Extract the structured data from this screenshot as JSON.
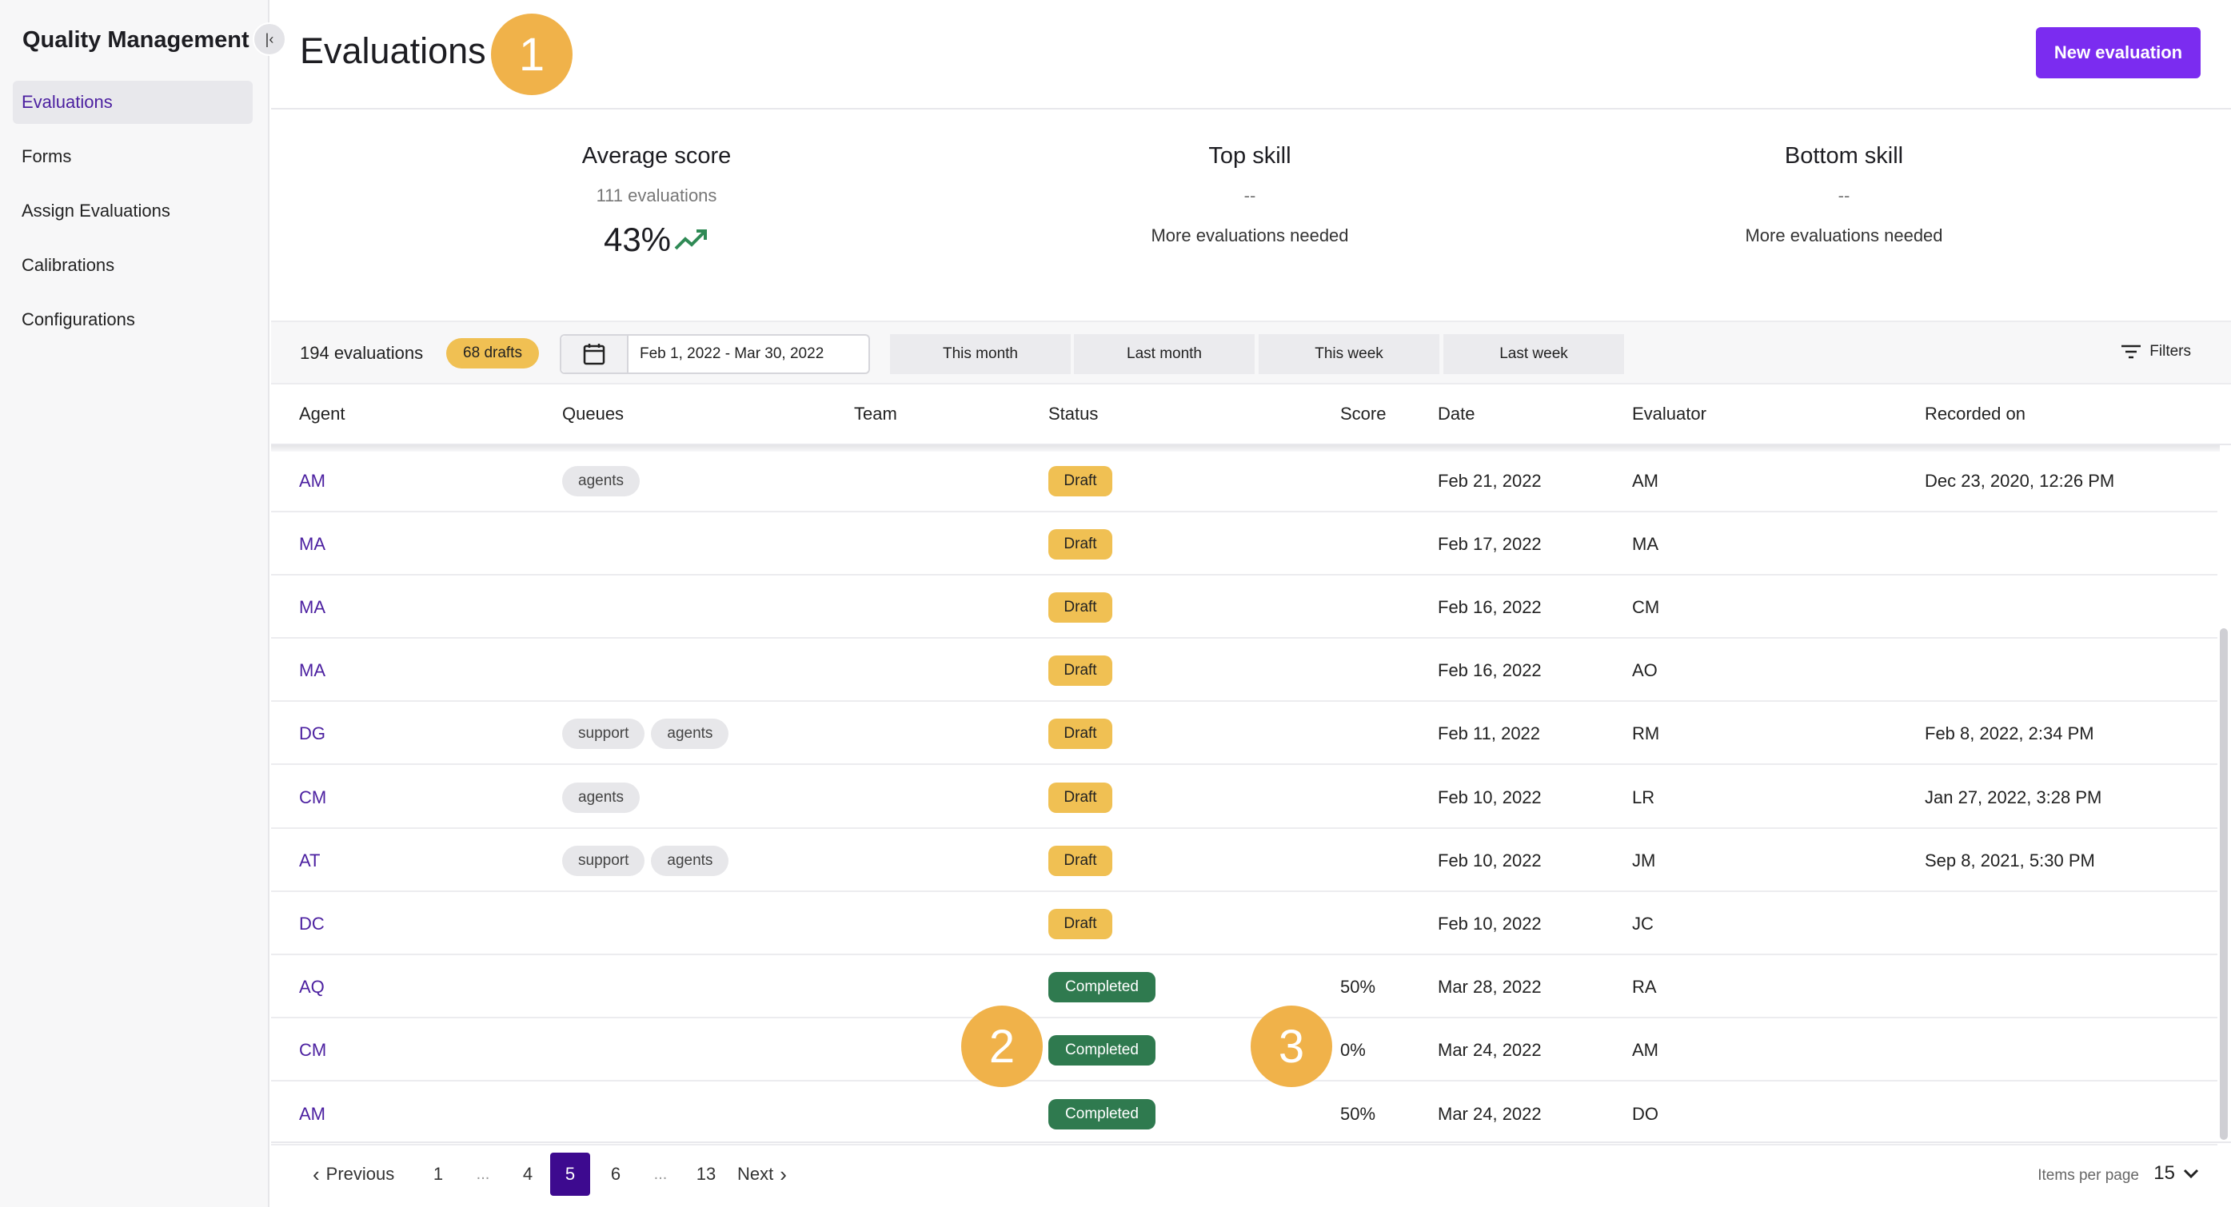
{
  "sidebar": {
    "title": "Quality Management",
    "collapse_icon": "collapse-left-icon",
    "items": [
      {
        "label": "Evaluations",
        "active": true
      },
      {
        "label": "Forms"
      },
      {
        "label": "Assign Evaluations"
      },
      {
        "label": "Calibrations"
      },
      {
        "label": "Configurations"
      }
    ]
  },
  "header": {
    "title": "Evaluations",
    "new_button": "New evaluation"
  },
  "markers": [
    "1",
    "2",
    "3"
  ],
  "stats": {
    "average": {
      "title": "Average score",
      "sub": "111 evaluations",
      "value": "43%",
      "trend_icon": "trending-up-icon"
    },
    "top": {
      "title": "Top skill",
      "sub": "--",
      "note": "More evaluations needed"
    },
    "bottom": {
      "title": "Bottom skill",
      "sub": "--",
      "note": "More evaluations needed"
    }
  },
  "toolbar": {
    "count": "194 evaluations",
    "drafts": "68 drafts",
    "date_range": "Feb 1, 2022 - Mar 30, 2022",
    "quick_ranges": [
      "This month",
      "Last month",
      "This week",
      "Last week"
    ],
    "filters": "Filters"
  },
  "table": {
    "headers": [
      "Agent",
      "Queues",
      "Team",
      "Status",
      "Score",
      "Date",
      "Evaluator",
      "Recorded on"
    ],
    "rows": [
      {
        "agent": "AM",
        "queues": [
          "agents"
        ],
        "status": "Draft",
        "score": "",
        "date": "Feb 21, 2022",
        "evaluator": "AM",
        "recorded": "Dec 23, 2020, 12:26 PM"
      },
      {
        "agent": "MA",
        "queues": [],
        "status": "Draft",
        "score": "",
        "date": "Feb 17, 2022",
        "evaluator": "MA",
        "recorded": ""
      },
      {
        "agent": "MA",
        "queues": [],
        "status": "Draft",
        "score": "",
        "date": "Feb 16, 2022",
        "evaluator": "CM",
        "recorded": ""
      },
      {
        "agent": "MA",
        "queues": [],
        "status": "Draft",
        "score": "",
        "date": "Feb 16, 2022",
        "evaluator": "AO",
        "recorded": ""
      },
      {
        "agent": "DG",
        "queues": [
          "support",
          "agents"
        ],
        "status": "Draft",
        "score": "",
        "date": "Feb 11, 2022",
        "evaluator": "RM",
        "recorded": "Feb 8, 2022, 2:34 PM"
      },
      {
        "agent": "CM",
        "queues": [
          "agents"
        ],
        "status": "Draft",
        "score": "",
        "date": "Feb 10, 2022",
        "evaluator": "LR",
        "recorded": "Jan 27, 2022, 3:28 PM"
      },
      {
        "agent": "AT",
        "queues": [
          "support",
          "agents"
        ],
        "status": "Draft",
        "score": "",
        "date": "Feb 10, 2022",
        "evaluator": "JM",
        "recorded": "Sep 8, 2021, 5:30 PM"
      },
      {
        "agent": "DC",
        "queues": [],
        "status": "Draft",
        "score": "",
        "date": "Feb 10, 2022",
        "evaluator": "JC",
        "recorded": ""
      },
      {
        "agent": "AQ",
        "queues": [],
        "status": "Completed",
        "score": "50%",
        "date": "Mar 28, 2022",
        "evaluator": "RA",
        "recorded": ""
      },
      {
        "agent": "CM",
        "queues": [],
        "status": "Completed",
        "score": "0%",
        "date": "Mar 24, 2022",
        "evaluator": "AM",
        "recorded": ""
      },
      {
        "agent": "AM",
        "queues": [],
        "status": "Completed",
        "score": "50%",
        "date": "Mar 24, 2022",
        "evaluator": "DO",
        "recorded": ""
      }
    ]
  },
  "pagination": {
    "previous": "Previous",
    "next": "Next",
    "pages": [
      "1",
      "...",
      "4",
      "5",
      "6",
      "...",
      "13"
    ],
    "current": "5",
    "items_per_page_label": "Items per page",
    "items_per_page": "15"
  },
  "colors": {
    "accent": "#7b2cf0",
    "draft": "#f0c053",
    "completed": "#2f7a4f",
    "marker": "#f0b24a"
  }
}
